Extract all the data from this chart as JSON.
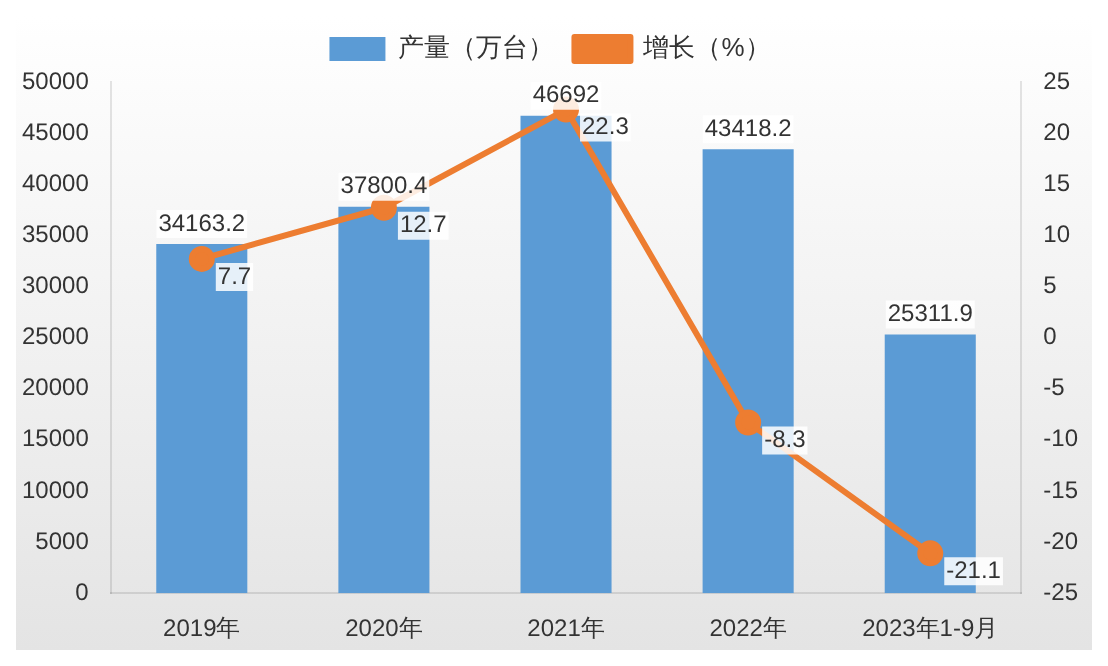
{
  "chart_data": {
    "type": "bar",
    "categories": [
      "2019年",
      "2020年",
      "2021年",
      "2022年",
      "2023年1-9月"
    ],
    "series": [
      {
        "name": "产量（万台）",
        "color": "#5b9bd5",
        "values": [
          34163.2,
          37800.4,
          46692,
          43418.2,
          25311.9
        ]
      },
      {
        "name": "增长（%）",
        "type": "line",
        "axis": "y2",
        "color": "#ed7d31",
        "values": [
          7.7,
          12.7,
          22.3,
          -8.3,
          -21.1
        ]
      }
    ],
    "ylim": [
      0,
      50000
    ],
    "yticks": [
      0,
      5000,
      10000,
      15000,
      20000,
      25000,
      30000,
      35000,
      40000,
      45000,
      50000
    ],
    "y2lim": [
      -25,
      25
    ],
    "y2ticks": [
      -25,
      -20,
      -15,
      -10,
      -5,
      0,
      5,
      10,
      15,
      20,
      25
    ],
    "data_labels": true,
    "legend": "top",
    "grid": false,
    "marker": "circle"
  }
}
